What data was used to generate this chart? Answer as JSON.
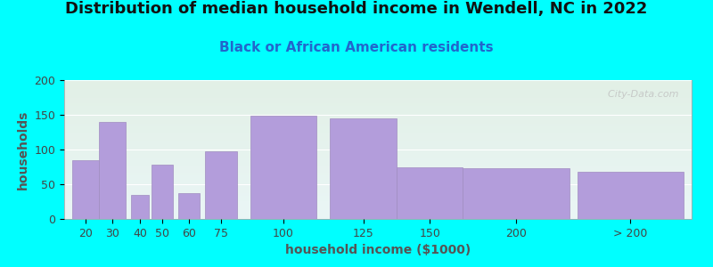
{
  "title": "Distribution of median household income in Wendell, NC in 2022",
  "subtitle": "Black or African American residents",
  "xlabel": "household income ($1000)",
  "ylabel": "households",
  "background_color": "#00ffff",
  "bar_color": "#b39ddb",
  "bar_edge_color": "#a08cc0",
  "categories": [
    "20",
    "30",
    "40",
    "50",
    "60",
    "75",
    "100",
    "125",
    "150",
    "200",
    "> 200"
  ],
  "values": [
    85,
    140,
    35,
    78,
    37,
    97,
    149,
    145,
    74,
    73,
    68
  ],
  "lefts": [
    15,
    25,
    37,
    45,
    55,
    65,
    82,
    112,
    137,
    162,
    205
  ],
  "widths": [
    10,
    10,
    7,
    8,
    8,
    12,
    25,
    25,
    25,
    40,
    40
  ],
  "ylim": [
    0,
    200
  ],
  "yticks": [
    0,
    50,
    100,
    150,
    200
  ],
  "xlim": [
    12,
    248
  ],
  "title_fontsize": 13,
  "subtitle_fontsize": 11,
  "axis_label_fontsize": 10,
  "tick_fontsize": 9,
  "watermark": "  City-Data.com",
  "plot_bg_top_color": "#e2f0e6",
  "plot_bg_bottom_color": "#eaf6f6",
  "subtitle_color": "#2266cc",
  "title_color": "#111111",
  "label_color": "#555555",
  "tick_color": "#444444"
}
